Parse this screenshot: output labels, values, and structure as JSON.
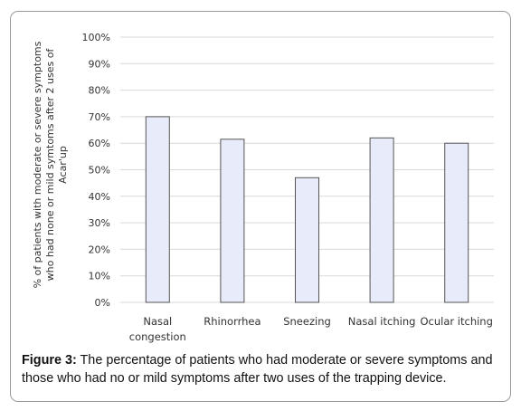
{
  "chart_data": {
    "type": "bar",
    "categories": [
      [
        "Nasal",
        "congestion"
      ],
      [
        "Rhinorrhea"
      ],
      [
        "Sneezing"
      ],
      [
        "Nasal itching"
      ],
      [
        "Ocular itching"
      ]
    ],
    "values": [
      70,
      61.5,
      47,
      62,
      60
    ],
    "ylabel_lines": [
      "% of patients with moderate  or severe symptoms",
      "who had  none or mild symtoms after 2 uses of",
      "Acar'up"
    ],
    "ylim": [
      0,
      100
    ],
    "yticks": [
      "0%",
      "10%",
      "20%",
      "30%",
      "40%",
      "50%",
      "60%",
      "70%",
      "80%",
      "90%",
      "100%"
    ],
    "grid": true,
    "bar_fill": "#e8ebf9",
    "bar_stroke": "#555555",
    "grid_color": "#d9d9d9"
  },
  "caption": {
    "label": "Figure 3:",
    "text": " The percentage of patients who had moderate or severe symptoms and those who had no or mild symptoms after two uses of the trapping device."
  }
}
